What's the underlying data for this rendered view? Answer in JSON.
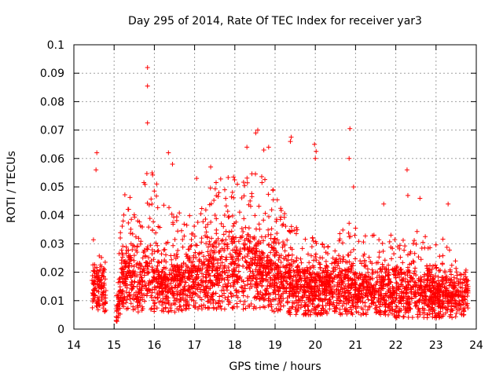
{
  "chart_data": {
    "type": "scatter",
    "title": "Day 295 of 2014, Rate Of TEC Index for receiver yar3",
    "xlabel": "GPS time / hours",
    "ylabel": "ROTI / TECUs",
    "xlim": [
      14,
      24
    ],
    "ylim": [
      0,
      0.1
    ],
    "grid": true,
    "marker": "+",
    "x_ticks": [
      "14",
      "15",
      "16",
      "17",
      "18",
      "19",
      "20",
      "21",
      "22",
      "23",
      "24"
    ],
    "y_ticks": [
      "0",
      "0.01",
      "0.02",
      "0.03",
      "0.04",
      "0.05",
      "0.06",
      "0.07",
      "0.08",
      "0.09",
      "0.1"
    ],
    "series": [
      {
        "name": "ROTI",
        "color": "#ff0000",
        "time_range": [
          14.45,
          23.8
        ],
        "envelope": {
          "x": [
            14.45,
            14.6,
            14.75,
            14.85,
            15.0,
            15.2,
            15.4,
            15.6,
            15.8,
            16.0,
            16.2,
            16.4,
            16.6,
            16.8,
            17.0,
            17.2,
            17.4,
            17.6,
            17.8,
            18.0,
            18.2,
            18.4,
            18.6,
            18.8,
            19.0,
            19.2,
            19.4,
            19.6,
            19.8,
            20.0,
            20.2,
            20.4,
            20.6,
            20.8,
            21.0,
            21.2,
            21.4,
            21.6,
            21.8,
            22.0,
            22.2,
            22.4,
            22.6,
            22.8,
            23.0,
            23.2,
            23.4,
            23.6,
            23.8
          ],
          "upper": [
            0.03,
            0.036,
            0.042,
            0.0,
            0.0,
            0.046,
            0.05,
            0.045,
            0.058,
            0.055,
            0.05,
            0.045,
            0.042,
            0.04,
            0.045,
            0.048,
            0.05,
            0.053,
            0.056,
            0.057,
            0.058,
            0.06,
            0.055,
            0.052,
            0.05,
            0.045,
            0.04,
            0.035,
            0.033,
            0.032,
            0.031,
            0.03,
            0.035,
            0.04,
            0.038,
            0.035,
            0.033,
            0.035,
            0.034,
            0.033,
            0.034,
            0.036,
            0.034,
            0.033,
            0.03,
            0.032,
            0.03,
            0.025,
            0.02
          ],
          "median": [
            0.015,
            0.016,
            0.015,
            0.0,
            0.0,
            0.018,
            0.02,
            0.019,
            0.019,
            0.018,
            0.017,
            0.016,
            0.016,
            0.017,
            0.018,
            0.019,
            0.02,
            0.021,
            0.022,
            0.022,
            0.023,
            0.022,
            0.021,
            0.02,
            0.019,
            0.018,
            0.017,
            0.016,
            0.015,
            0.015,
            0.015,
            0.015,
            0.016,
            0.016,
            0.015,
            0.015,
            0.014,
            0.014,
            0.014,
            0.013,
            0.013,
            0.013,
            0.013,
            0.013,
            0.013,
            0.012,
            0.012,
            0.012,
            0.012
          ],
          "lower": [
            0.007,
            0.006,
            0.007,
            0.0,
            0.0,
            0.007,
            0.006,
            0.006,
            0.006,
            0.006,
            0.006,
            0.006,
            0.006,
            0.007,
            0.007,
            0.007,
            0.007,
            0.007,
            0.007,
            0.007,
            0.007,
            0.007,
            0.007,
            0.007,
            0.006,
            0.006,
            0.005,
            0.005,
            0.005,
            0.005,
            0.005,
            0.005,
            0.005,
            0.005,
            0.005,
            0.005,
            0.005,
            0.005,
            0.005,
            0.004,
            0.004,
            0.004,
            0.004,
            0.004,
            0.004,
            0.004,
            0.004,
            0.004,
            0.005
          ]
        },
        "gap": [
          14.8,
          15.05
        ],
        "notable_points": [
          {
            "x": 15.83,
            "y": 0.092
          },
          {
            "x": 15.83,
            "y": 0.0855
          },
          {
            "x": 15.83,
            "y": 0.0725
          },
          {
            "x": 14.57,
            "y": 0.062
          },
          {
            "x": 14.55,
            "y": 0.056
          },
          {
            "x": 16.35,
            "y": 0.062
          },
          {
            "x": 16.45,
            "y": 0.058
          },
          {
            "x": 18.57,
            "y": 0.07
          },
          {
            "x": 18.52,
            "y": 0.069
          },
          {
            "x": 18.72,
            "y": 0.063
          },
          {
            "x": 18.84,
            "y": 0.064
          },
          {
            "x": 19.4,
            "y": 0.0675
          },
          {
            "x": 19.38,
            "y": 0.066
          },
          {
            "x": 19.98,
            "y": 0.065
          },
          {
            "x": 20.02,
            "y": 0.0625
          },
          {
            "x": 20.0,
            "y": 0.06
          },
          {
            "x": 20.86,
            "y": 0.0705
          },
          {
            "x": 20.84,
            "y": 0.06
          },
          {
            "x": 20.95,
            "y": 0.05
          },
          {
            "x": 22.28,
            "y": 0.056
          },
          {
            "x": 22.3,
            "y": 0.047
          },
          {
            "x": 22.6,
            "y": 0.046
          },
          {
            "x": 23.3,
            "y": 0.044
          },
          {
            "x": 21.7,
            "y": 0.044
          },
          {
            "x": 17.05,
            "y": 0.053
          },
          {
            "x": 18.3,
            "y": 0.064
          },
          {
            "x": 17.4,
            "y": 0.057
          }
        ]
      }
    ]
  }
}
